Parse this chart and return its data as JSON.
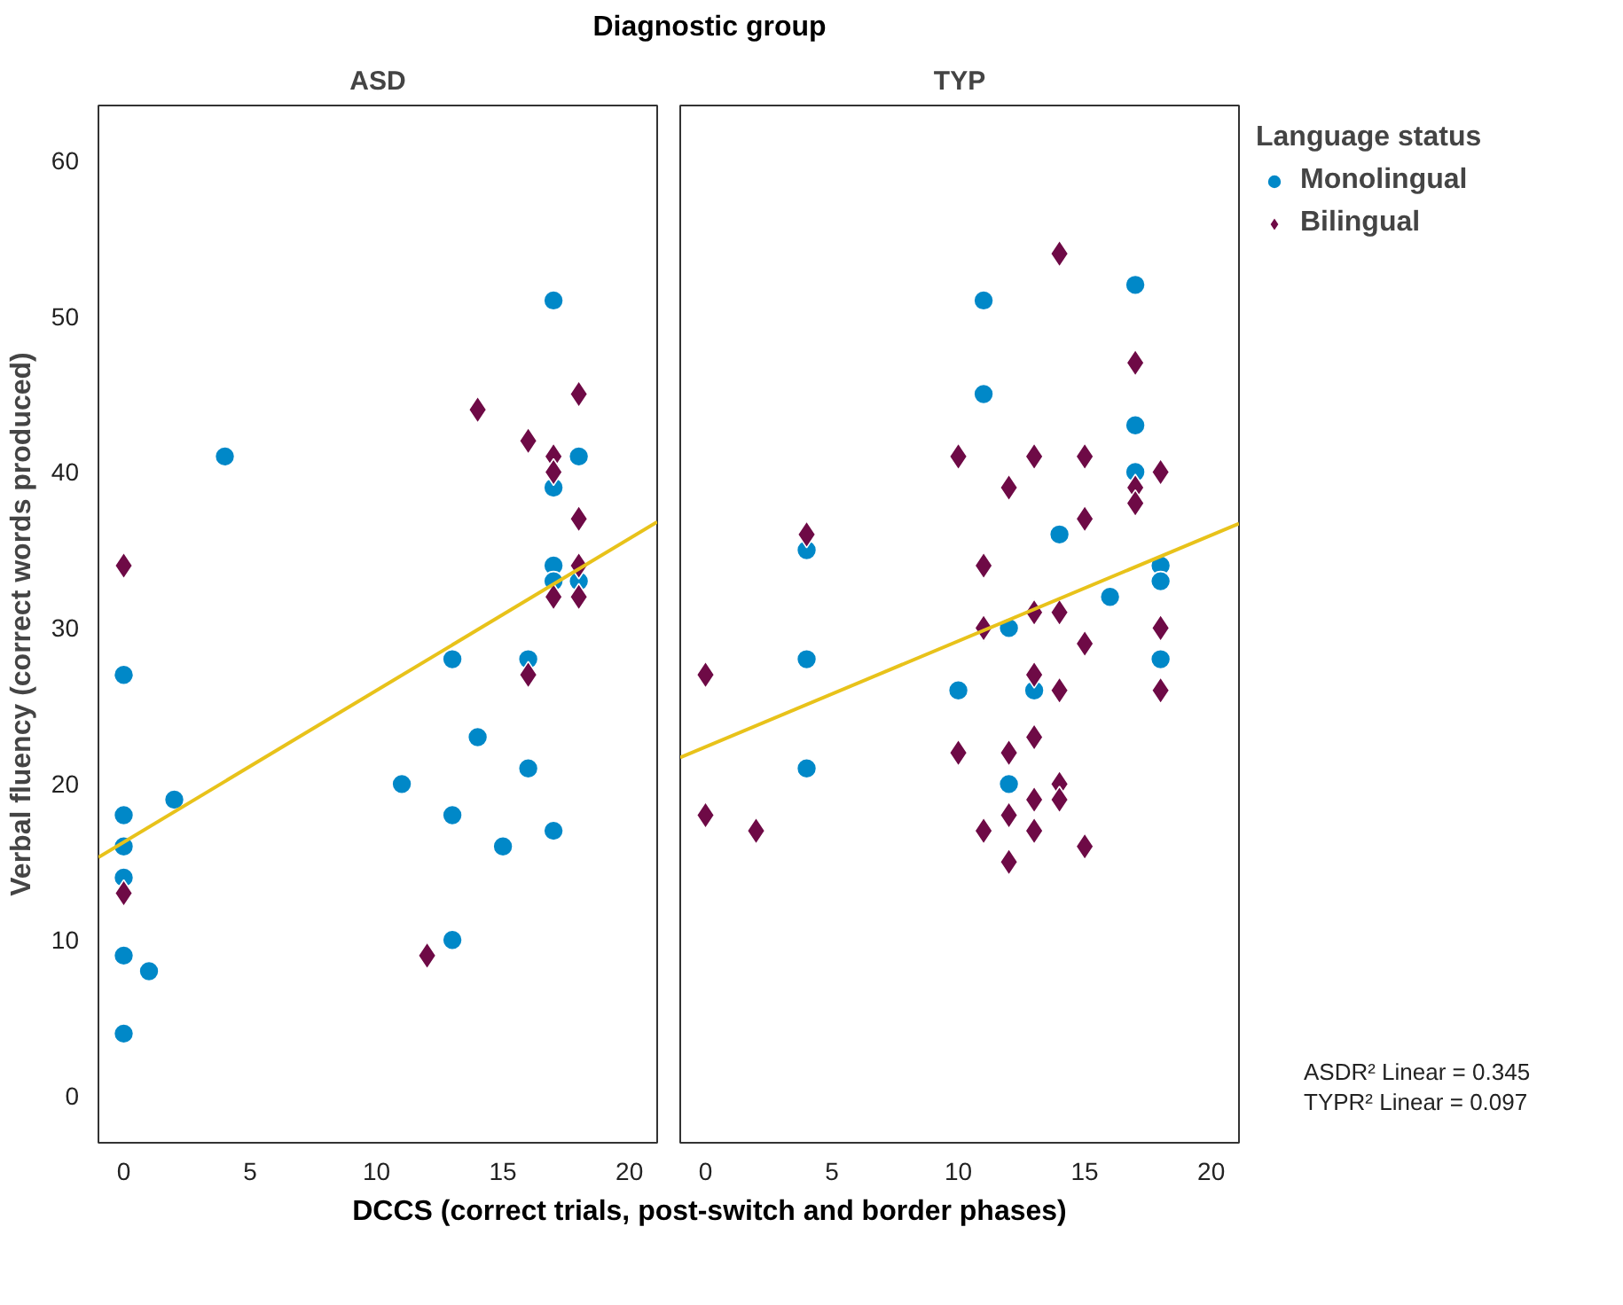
{
  "chart_data": [
    {
      "type": "scatter",
      "title": "ASD",
      "subtitle": "Diagnostic group",
      "xlabel": "DCCS (correct trials, post-switch and border phases)",
      "ylabel": "Verbal fluency (correct words produced)",
      "xlim": [
        -1,
        21.1
      ],
      "ylim": [
        -3,
        63.5
      ],
      "xticks": [
        0,
        5,
        10,
        15,
        20
      ],
      "yticks": [
        0,
        10,
        20,
        30,
        40,
        50,
        60
      ],
      "grid": false,
      "legend": false,
      "series": [
        {
          "color": "#0088c8",
          "marker": "circle",
          "x": [
            0,
            0,
            0,
            0,
            0,
            0,
            1,
            2,
            4,
            11,
            13,
            13,
            13,
            14,
            15,
            16,
            16,
            17,
            17,
            17,
            17,
            17,
            18,
            18
          ],
          "values": [
            27,
            18,
            16,
            14,
            9,
            4,
            8,
            19,
            41,
            20,
            28,
            18,
            10,
            23,
            16,
            28,
            21,
            51,
            39,
            34,
            33,
            17,
            41,
            33
          ]
        },
        {
          "color": "#6e0a46",
          "marker": "diamond",
          "x": [
            0,
            0,
            12,
            14,
            16,
            16,
            17,
            17,
            17,
            18,
            18,
            18,
            18
          ],
          "values": [
            34,
            13,
            9,
            44,
            42,
            27,
            41,
            40,
            32,
            45,
            37,
            34,
            32
          ]
        },
        {
          "type": "line",
          "color": "#e8c21a",
          "marker": "none",
          "x": [
            -1,
            21.1
          ],
          "values": [
            15.3,
            36.8
          ]
        }
      ]
    },
    {
      "type": "scatter",
      "title": "TYP",
      "xlim": [
        -1,
        21.1
      ],
      "ylim": [
        -3,
        63.5
      ],
      "xticks": [
        0,
        5,
        10,
        15,
        20
      ],
      "tick_labels": "x",
      "grid": false,
      "legend": "right",
      "legend_title": "Language status",
      "annotations": [
        "ASDR² Linear = 0.345",
        "TYPR² Linear = 0.097"
      ],
      "series": [
        {
          "name": "Monolingual",
          "color": "#0088c8",
          "marker": "circle",
          "x": [
            4,
            4,
            4,
            10,
            11,
            11,
            12,
            12,
            13,
            14,
            16,
            17,
            17,
            17,
            18,
            18,
            18
          ],
          "values": [
            35,
            28,
            21,
            26,
            51,
            45,
            30,
            20,
            26,
            36,
            32,
            52,
            43,
            40,
            34,
            33,
            28
          ]
        },
        {
          "name": "Bilingual",
          "color": "#6e0a46",
          "marker": "diamond",
          "x": [
            0,
            0,
            2,
            4,
            10,
            10,
            11,
            11,
            11,
            12,
            12,
            12,
            12,
            13,
            13,
            13,
            13,
            13,
            13,
            14,
            14,
            14,
            14,
            14,
            15,
            15,
            15,
            15,
            17,
            17,
            17,
            18,
            18,
            18
          ],
          "values": [
            27,
            18,
            17,
            36,
            41,
            22,
            34,
            30,
            17,
            39,
            22,
            18,
            15,
            41,
            31,
            27,
            23,
            19,
            17,
            54,
            31,
            26,
            20,
            19,
            41,
            37,
            29,
            16,
            47,
            39,
            38,
            40,
            30,
            26
          ]
        },
        {
          "type": "line",
          "color": "#e8c21a",
          "marker": "none",
          "x": [
            -1,
            21.1
          ],
          "values": [
            21.7,
            36.7
          ]
        }
      ]
    }
  ]
}
